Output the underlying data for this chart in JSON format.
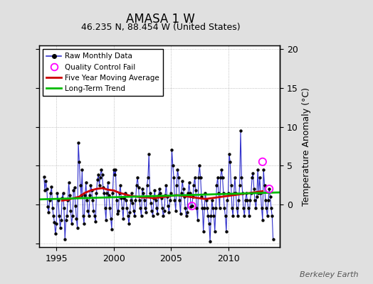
{
  "title": "AMASA 1 W",
  "subtitle": "46.235 N, 88.454 W (United States)",
  "ylabel": "Temperature Anomaly (°C)",
  "watermark": "Berkeley Earth",
  "xlim": [
    1993.5,
    2014.5
  ],
  "ylim": [
    -5.5,
    20.5
  ],
  "yticks_left": [
    -5,
    0,
    5,
    10,
    15,
    20
  ],
  "yticks_right": [
    0,
    5,
    10,
    15,
    20
  ],
  "xticks": [
    1995,
    2000,
    2005,
    2010
  ],
  "background_color": "#e0e0e0",
  "plot_bg_color": "#ffffff",
  "raw_color": "#3333cc",
  "ma_color": "#cc0000",
  "trend_color": "#00bb00",
  "qc_color": "#ff00ff",
  "raw_data": [
    [
      1993.917,
      3.6
    ],
    [
      1994.0,
      1.8
    ],
    [
      1994.083,
      3.0
    ],
    [
      1994.167,
      2.0
    ],
    [
      1994.25,
      -0.3
    ],
    [
      1994.333,
      -1.0
    ],
    [
      1994.417,
      0.5
    ],
    [
      1994.5,
      1.5
    ],
    [
      1994.583,
      2.3
    ],
    [
      1994.667,
      -0.5
    ],
    [
      1994.75,
      -1.5
    ],
    [
      1994.833,
      -2.3
    ],
    [
      1994.917,
      -3.8
    ],
    [
      1995.0,
      -2.5
    ],
    [
      1995.083,
      1.5
    ],
    [
      1995.167,
      0.5
    ],
    [
      1995.25,
      -1.5
    ],
    [
      1995.333,
      -3.0
    ],
    [
      1995.417,
      -2.0
    ],
    [
      1995.5,
      0.8
    ],
    [
      1995.583,
      1.5
    ],
    [
      1995.667,
      -0.5
    ],
    [
      1995.75,
      -4.5
    ],
    [
      1995.833,
      -2.0
    ],
    [
      1995.917,
      -1.5
    ],
    [
      1996.0,
      0.5
    ],
    [
      1996.083,
      2.8
    ],
    [
      1996.167,
      1.2
    ],
    [
      1996.25,
      -0.8
    ],
    [
      1996.333,
      -2.5
    ],
    [
      1996.417,
      -1.5
    ],
    [
      1996.5,
      1.8
    ],
    [
      1996.583,
      2.2
    ],
    [
      1996.667,
      -0.2
    ],
    [
      1996.75,
      -1.8
    ],
    [
      1996.833,
      -3.0
    ],
    [
      1996.917,
      8.0
    ],
    [
      1997.0,
      5.5
    ],
    [
      1997.083,
      2.5
    ],
    [
      1997.167,
      1.2
    ],
    [
      1997.25,
      4.5
    ],
    [
      1997.333,
      -1.5
    ],
    [
      1997.417,
      -2.5
    ],
    [
      1997.5,
      1.2
    ],
    [
      1997.583,
      2.8
    ],
    [
      1997.667,
      0.5
    ],
    [
      1997.75,
      -0.8
    ],
    [
      1997.833,
      -1.5
    ],
    [
      1997.917,
      1.2
    ],
    [
      1998.0,
      2.5
    ],
    [
      1998.083,
      1.8
    ],
    [
      1998.167,
      0.5
    ],
    [
      1998.25,
      -0.8
    ],
    [
      1998.333,
      -1.5
    ],
    [
      1998.417,
      -2.2
    ],
    [
      1998.5,
      1.5
    ],
    [
      1998.583,
      3.2
    ],
    [
      1998.667,
      3.8
    ],
    [
      1998.75,
      2.5
    ],
    [
      1998.833,
      3.5
    ],
    [
      1998.917,
      4.5
    ],
    [
      1999.0,
      3.8
    ],
    [
      1999.083,
      2.2
    ],
    [
      1999.167,
      1.5
    ],
    [
      1999.25,
      -0.5
    ],
    [
      1999.333,
      -2.0
    ],
    [
      1999.417,
      1.5
    ],
    [
      1999.5,
      2.8
    ],
    [
      1999.583,
      1.2
    ],
    [
      1999.667,
      -0.5
    ],
    [
      1999.75,
      -1.8
    ],
    [
      1999.833,
      -3.2
    ],
    [
      1999.917,
      1.5
    ],
    [
      2000.0,
      4.5
    ],
    [
      2000.083,
      3.8
    ],
    [
      2000.167,
      4.5
    ],
    [
      2000.25,
      0.5
    ],
    [
      2000.333,
      -1.2
    ],
    [
      2000.417,
      -0.8
    ],
    [
      2000.5,
      1.5
    ],
    [
      2000.583,
      2.5
    ],
    [
      2000.667,
      0.8
    ],
    [
      2000.75,
      -0.5
    ],
    [
      2000.833,
      -1.8
    ],
    [
      2000.917,
      0.8
    ],
    [
      2001.0,
      1.5
    ],
    [
      2001.083,
      0.5
    ],
    [
      2001.167,
      -0.5
    ],
    [
      2001.25,
      -1.5
    ],
    [
      2001.333,
      -2.5
    ],
    [
      2001.417,
      -1.0
    ],
    [
      2001.5,
      0.5
    ],
    [
      2001.583,
      1.5
    ],
    [
      2001.667,
      0.2
    ],
    [
      2001.75,
      -0.8
    ],
    [
      2001.833,
      -1.5
    ],
    [
      2001.917,
      0.5
    ],
    [
      2002.0,
      2.5
    ],
    [
      2002.083,
      3.5
    ],
    [
      2002.167,
      2.2
    ],
    [
      2002.25,
      0.5
    ],
    [
      2002.333,
      -0.5
    ],
    [
      2002.417,
      -1.5
    ],
    [
      2002.5,
      2.0
    ],
    [
      2002.583,
      1.5
    ],
    [
      2002.667,
      0.5
    ],
    [
      2002.75,
      -0.5
    ],
    [
      2002.833,
      -1.0
    ],
    [
      2002.917,
      2.5
    ],
    [
      2003.0,
      3.5
    ],
    [
      2003.083,
      6.5
    ],
    [
      2003.167,
      1.5
    ],
    [
      2003.25,
      0.2
    ],
    [
      2003.333,
      -0.8
    ],
    [
      2003.417,
      -1.5
    ],
    [
      2003.5,
      0.8
    ],
    [
      2003.583,
      1.8
    ],
    [
      2003.667,
      0.5
    ],
    [
      2003.75,
      -0.5
    ],
    [
      2003.833,
      -1.2
    ],
    [
      2003.917,
      1.2
    ],
    [
      2004.0,
      2.0
    ],
    [
      2004.083,
      1.5
    ],
    [
      2004.167,
      0.8
    ],
    [
      2004.25,
      -0.5
    ],
    [
      2004.333,
      -1.5
    ],
    [
      2004.417,
      -0.8
    ],
    [
      2004.5,
      1.2
    ],
    [
      2004.583,
      2.5
    ],
    [
      2004.667,
      1.0
    ],
    [
      2004.75,
      -0.2
    ],
    [
      2004.833,
      -1.0
    ],
    [
      2004.917,
      0.5
    ],
    [
      2005.0,
      1.5
    ],
    [
      2005.083,
      7.0
    ],
    [
      2005.167,
      5.0
    ],
    [
      2005.25,
      3.5
    ],
    [
      2005.333,
      0.5
    ],
    [
      2005.417,
      -0.8
    ],
    [
      2005.5,
      2.5
    ],
    [
      2005.583,
      4.5
    ],
    [
      2005.667,
      3.5
    ],
    [
      2005.75,
      0.5
    ],
    [
      2005.833,
      -1.2
    ],
    [
      2005.917,
      1.5
    ],
    [
      2006.0,
      3.0
    ],
    [
      2006.083,
      2.0
    ],
    [
      2006.167,
      1.0
    ],
    [
      2006.25,
      -0.5
    ],
    [
      2006.333,
      -1.5
    ],
    [
      2006.417,
      -1.0
    ],
    [
      2006.5,
      1.5
    ],
    [
      2006.583,
      2.8
    ],
    [
      2006.667,
      1.5
    ],
    [
      2006.75,
      -0.3
    ],
    [
      2006.833,
      -0.2
    ],
    [
      2006.917,
      1.0
    ],
    [
      2007.0,
      2.5
    ],
    [
      2007.083,
      3.5
    ],
    [
      2007.167,
      1.8
    ],
    [
      2007.25,
      -0.5
    ],
    [
      2007.333,
      -2.0
    ],
    [
      2007.417,
      3.5
    ],
    [
      2007.5,
      5.0
    ],
    [
      2007.583,
      3.5
    ],
    [
      2007.667,
      1.0
    ],
    [
      2007.75,
      -0.5
    ],
    [
      2007.833,
      -3.5
    ],
    [
      2007.917,
      -0.5
    ],
    [
      2008.0,
      1.5
    ],
    [
      2008.083,
      0.5
    ],
    [
      2008.167,
      -0.5
    ],
    [
      2008.25,
      -1.5
    ],
    [
      2008.333,
      -2.5
    ],
    [
      2008.417,
      -4.8
    ],
    [
      2008.5,
      -1.5
    ],
    [
      2008.583,
      0.5
    ],
    [
      2008.667,
      -0.5
    ],
    [
      2008.75,
      -1.5
    ],
    [
      2008.833,
      -3.5
    ],
    [
      2008.917,
      -0.5
    ],
    [
      2009.0,
      2.5
    ],
    [
      2009.083,
      3.5
    ],
    [
      2009.167,
      1.5
    ],
    [
      2009.25,
      -0.5
    ],
    [
      2009.333,
      3.5
    ],
    [
      2009.417,
      4.5
    ],
    [
      2009.5,
      3.5
    ],
    [
      2009.583,
      1.5
    ],
    [
      2009.667,
      -0.5
    ],
    [
      2009.75,
      -1.5
    ],
    [
      2009.833,
      -3.5
    ],
    [
      2009.917,
      0.5
    ],
    [
      2010.0,
      1.5
    ],
    [
      2010.083,
      6.5
    ],
    [
      2010.167,
      5.5
    ],
    [
      2010.25,
      2.5
    ],
    [
      2010.333,
      -0.5
    ],
    [
      2010.417,
      -1.5
    ],
    [
      2010.5,
      1.5
    ],
    [
      2010.583,
      3.5
    ],
    [
      2010.667,
      1.5
    ],
    [
      2010.75,
      -0.5
    ],
    [
      2010.833,
      -1.5
    ],
    [
      2010.917,
      0.5
    ],
    [
      2011.0,
      2.5
    ],
    [
      2011.083,
      9.5
    ],
    [
      2011.167,
      3.5
    ],
    [
      2011.25,
      1.5
    ],
    [
      2011.333,
      -0.5
    ],
    [
      2011.417,
      -1.5
    ],
    [
      2011.5,
      0.5
    ],
    [
      2011.583,
      1.5
    ],
    [
      2011.667,
      0.5
    ],
    [
      2011.75,
      -0.5
    ],
    [
      2011.833,
      -1.5
    ],
    [
      2011.917,
      0.5
    ],
    [
      2012.0,
      1.5
    ],
    [
      2012.083,
      3.5
    ],
    [
      2012.167,
      4.0
    ],
    [
      2012.25,
      2.0
    ],
    [
      2012.333,
      0.5
    ],
    [
      2012.417,
      -0.5
    ],
    [
      2012.5,
      1.0
    ],
    [
      2012.583,
      4.5
    ],
    [
      2012.667,
      1.5
    ],
    [
      2012.75,
      3.5
    ],
    [
      2012.833,
      1.5
    ],
    [
      2012.917,
      -0.5
    ],
    [
      2013.0,
      -2.0
    ],
    [
      2013.083,
      4.5
    ],
    [
      2013.167,
      2.5
    ],
    [
      2013.25,
      0.5
    ],
    [
      2013.333,
      -0.5
    ],
    [
      2013.417,
      -1.5
    ],
    [
      2013.5,
      0.5
    ],
    [
      2013.583,
      2.0
    ],
    [
      2013.667,
      1.0
    ],
    [
      2013.75,
      -0.5
    ],
    [
      2013.833,
      -1.5
    ],
    [
      2013.917,
      -4.5
    ]
  ],
  "qc_fail_on_line": [
    [
      2006.833,
      -0.2
    ],
    [
      2013.583,
      2.0
    ]
  ],
  "qc_fail_isolated": [
    [
      2013.0,
      5.5
    ]
  ],
  "ma_data": [
    [
      1995.5,
      0.5
    ],
    [
      1996.0,
      0.6
    ],
    [
      1996.5,
      0.8
    ],
    [
      1997.0,
      1.0
    ],
    [
      1997.5,
      1.5
    ],
    [
      1998.0,
      1.8
    ],
    [
      1998.5,
      2.0
    ],
    [
      1999.0,
      2.1
    ],
    [
      1999.5,
      1.9
    ],
    [
      2000.0,
      1.8
    ],
    [
      2000.5,
      1.5
    ],
    [
      2001.0,
      1.3
    ],
    [
      2001.5,
      1.1
    ],
    [
      2002.0,
      1.0
    ],
    [
      2002.5,
      0.9
    ],
    [
      2003.0,
      0.9
    ],
    [
      2003.5,
      0.8
    ],
    [
      2004.0,
      0.9
    ],
    [
      2004.5,
      1.0
    ],
    [
      2005.0,
      1.1
    ],
    [
      2005.5,
      1.2
    ],
    [
      2006.0,
      1.1
    ],
    [
      2006.5,
      1.0
    ],
    [
      2007.0,
      0.9
    ],
    [
      2007.5,
      0.8
    ],
    [
      2008.0,
      0.7
    ],
    [
      2008.5,
      0.8
    ],
    [
      2009.0,
      0.9
    ],
    [
      2009.5,
      1.0
    ],
    [
      2010.0,
      1.1
    ],
    [
      2010.5,
      1.2
    ],
    [
      2011.0,
      1.3
    ],
    [
      2011.5,
      1.4
    ],
    [
      2012.0,
      1.5
    ],
    [
      2012.5,
      1.6
    ],
    [
      2013.0,
      1.7
    ]
  ],
  "trend_data": [
    [
      1993.5,
      0.65
    ],
    [
      2014.5,
      1.55
    ]
  ]
}
